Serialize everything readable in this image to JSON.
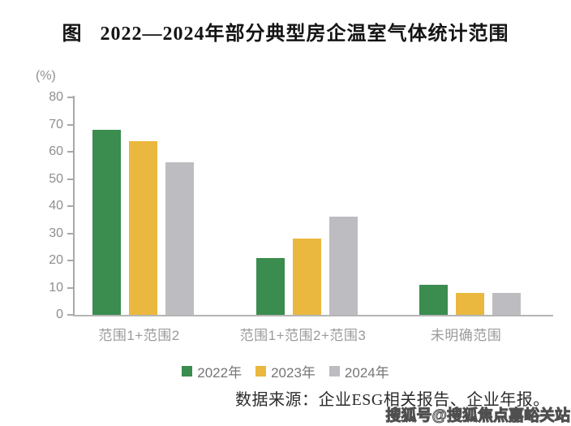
{
  "title": {
    "prefix": "图",
    "text": "2022—2024年部分典型房企温室气体统计范围"
  },
  "chart_data": {
    "type": "bar",
    "title": "图 2022—2024年部分典型房企温室气体统计范围",
    "unit_label": "(%)",
    "categories": [
      "范围1+范围2",
      "范围1+范围2+范围3",
      "未明确范围"
    ],
    "series": [
      {
        "name": "2022年",
        "color": "#3a8c4f",
        "values": [
          68,
          21,
          11
        ]
      },
      {
        "name": "2023年",
        "color": "#eab83e",
        "values": [
          64,
          28,
          8
        ]
      },
      {
        "name": "2024年",
        "color": "#bdbdc1",
        "values": [
          56,
          36,
          8
        ]
      }
    ],
    "xlabel": "",
    "ylabel": "(%)",
    "ylim": [
      0,
      80
    ],
    "y_ticks": [
      0,
      10,
      20,
      30,
      40,
      50,
      60,
      70,
      80
    ],
    "grid": false,
    "legend_position": "bottom"
  },
  "source_note": "数据来源：企业ESG相关报告、企业年报。",
  "watermark": "搜狐号@搜狐焦点嘉峪关站"
}
